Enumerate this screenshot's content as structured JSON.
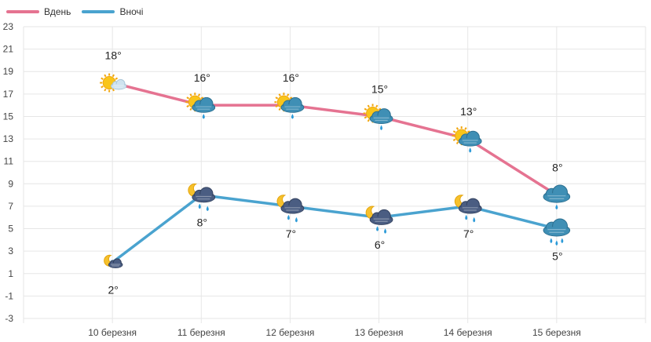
{
  "chart_data": {
    "type": "line",
    "categories": [
      "10 березня",
      "11 березня",
      "12 березня",
      "13 березня",
      "14 березня",
      "15 березня"
    ],
    "series": [
      {
        "name": "Вдень",
        "color": "#e57391",
        "values": [
          18,
          16,
          16,
          15,
          13,
          8
        ],
        "labels": [
          "18°",
          "16°",
          "16°",
          "15°",
          "13°",
          "8°"
        ],
        "icons": [
          "sun-cloud-icon",
          "sun-rain-cloud-icon",
          "sun-rain-cloud-icon",
          "sun-rain-cloud-icon",
          "sun-rain-cloud-icon",
          "cloud-icon"
        ]
      },
      {
        "name": "Вночі",
        "color": "#4aa3cf",
        "values": [
          2,
          8,
          7,
          6,
          7,
          5
        ],
        "labels": [
          "2°",
          "8°",
          "7°",
          "6°",
          "7°",
          "5°"
        ],
        "icons": [
          "moon-cloud-icon",
          "moon-rain-cloud-icon",
          "moon-rain-cloud-icon",
          "moon-rain-cloud-icon",
          "moon-rain-cloud-icon",
          "rain-cloud-icon"
        ]
      }
    ],
    "ylim": [
      -3,
      23
    ],
    "yticks": [
      "23",
      "21",
      "19",
      "17",
      "15",
      "13",
      "11",
      "9",
      "7",
      "5",
      "3",
      "1",
      "-1",
      "-3"
    ],
    "grid": true,
    "legend": "top-left"
  }
}
